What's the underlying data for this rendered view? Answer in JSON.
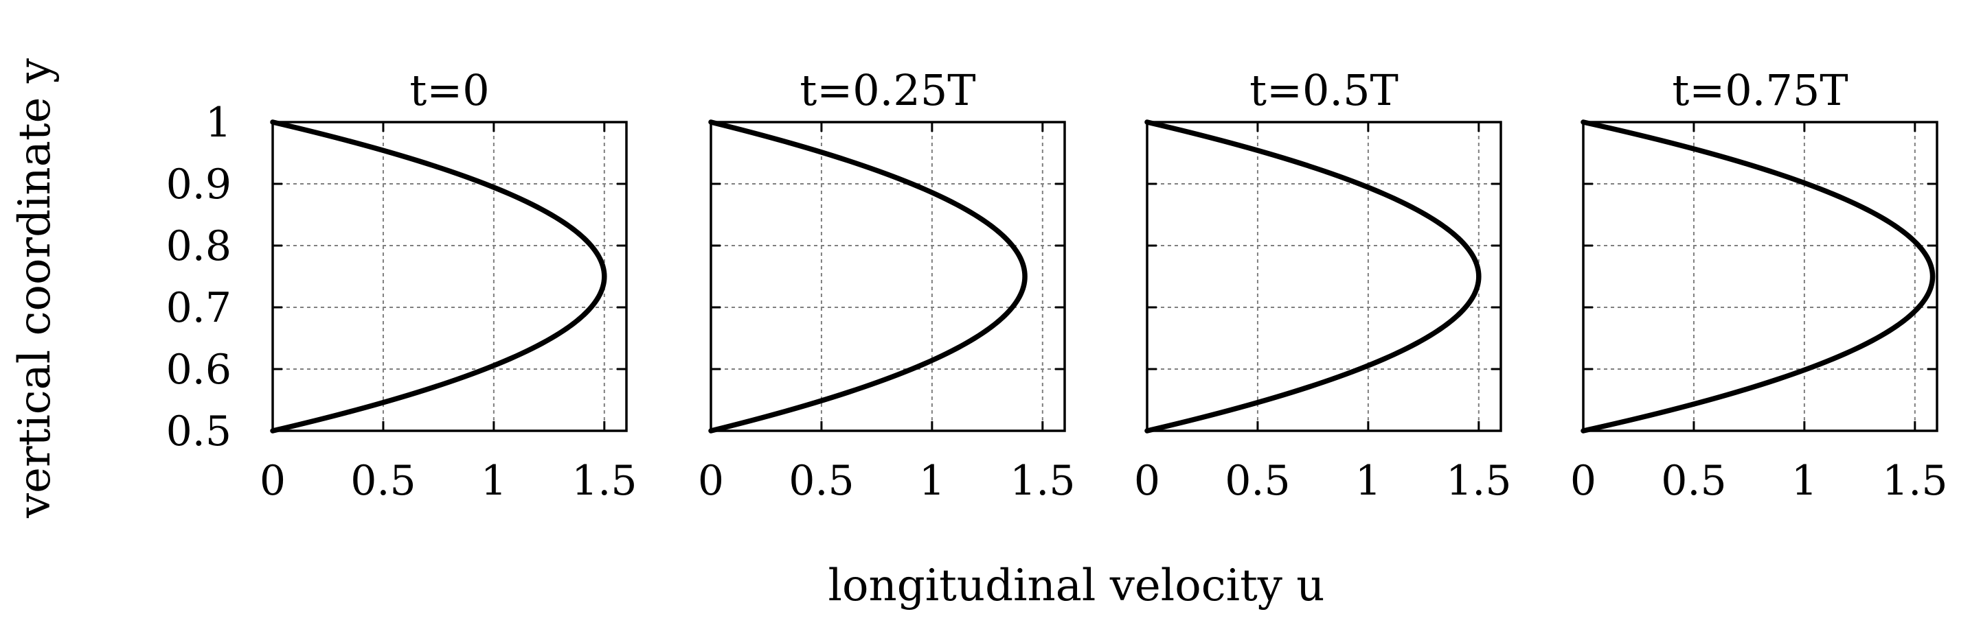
{
  "chart_data": {
    "type": "line",
    "xlabel": "longitudinal velocity u",
    "ylabel": "vertical coordinate y",
    "xlim": [
      0,
      1.6
    ],
    "ylim": [
      0.5,
      1.0
    ],
    "x_ticks": [
      "0",
      "0.5",
      "1",
      "1.5"
    ],
    "x_tick_values": [
      0,
      0.5,
      1,
      1.5
    ],
    "y_ticks": [
      "0.5",
      "0.6",
      "0.7",
      "0.8",
      "0.9",
      "1"
    ],
    "y_tick_values": [
      0.5,
      0.6,
      0.7,
      0.8,
      0.9,
      1.0
    ],
    "grid": true,
    "panels": [
      {
        "title": "t=0",
        "y": [
          0.5,
          0.55,
          0.6,
          0.65,
          0.7,
          0.75,
          0.8,
          0.85,
          0.9,
          0.95,
          1.0
        ],
        "u": [
          0.0,
          0.54,
          0.96,
          1.26,
          1.44,
          1.5,
          1.44,
          1.26,
          0.96,
          0.54,
          0.0
        ]
      },
      {
        "title": "t=0.25T",
        "y": [
          0.5,
          0.55,
          0.6,
          0.65,
          0.7,
          0.75,
          0.8,
          0.85,
          0.9,
          0.95,
          1.0
        ],
        "u": [
          0.0,
          0.51,
          0.9,
          1.18,
          1.35,
          1.42,
          1.35,
          1.18,
          0.9,
          0.51,
          0.0
        ]
      },
      {
        "title": "t=0.5T",
        "y": [
          0.5,
          0.55,
          0.6,
          0.65,
          0.7,
          0.75,
          0.8,
          0.85,
          0.9,
          0.95,
          1.0
        ],
        "u": [
          0.0,
          0.54,
          0.96,
          1.26,
          1.44,
          1.5,
          1.44,
          1.26,
          0.96,
          0.54,
          0.0
        ]
      },
      {
        "title": "t=0.75T",
        "y": [
          0.5,
          0.55,
          0.6,
          0.65,
          0.7,
          0.75,
          0.8,
          0.85,
          0.9,
          0.95,
          1.0
        ],
        "u": [
          0.0,
          0.57,
          1.01,
          1.33,
          1.52,
          1.58,
          1.52,
          1.33,
          1.01,
          0.57,
          0.0
        ]
      }
    ]
  }
}
